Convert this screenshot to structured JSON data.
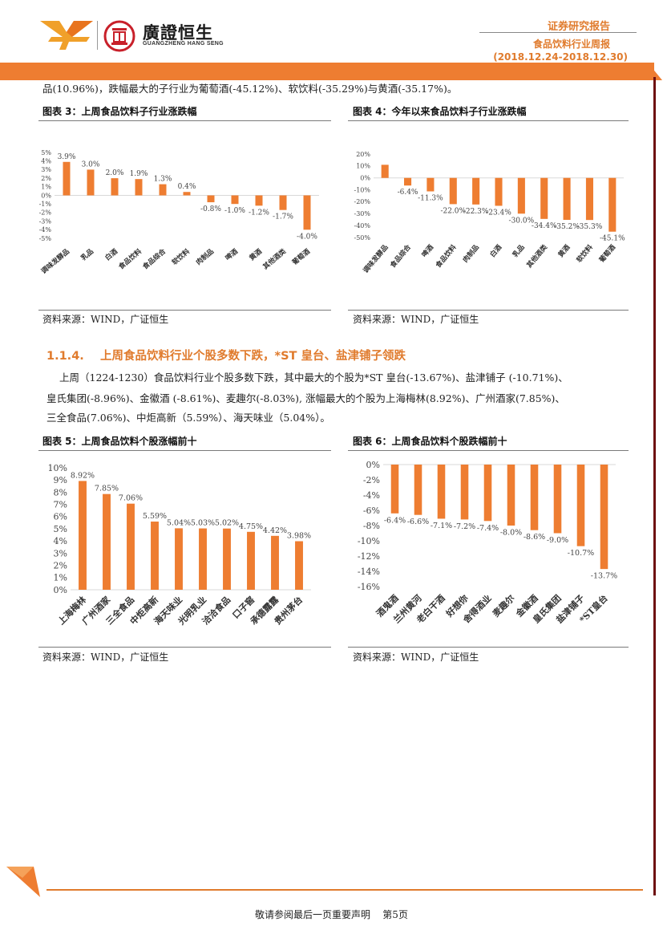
{
  "header": {
    "logo_cn": "廣證恒生",
    "logo_en": "GUANGZHENG HANG SENG",
    "report_type": "证券研究报告",
    "report_name": "食品饮料行业周报",
    "date_range": "(2018.12.24-2018.12.30)"
  },
  "intro_line": "品(10.96%)，跌幅最大的子行业为葡萄酒(-45.12%)、软饮料(-35.29%)与黄酒(-35.17%)。",
  "figure3": {
    "title": "图表 3：上周食品饮料子行业涨跌幅",
    "source": "资料来源：WIND，广证恒生"
  },
  "figure4": {
    "title": "图表 4：今年以来食品饮料子行业涨跌幅",
    "source": "资料来源：WIND，广证恒生"
  },
  "section": {
    "title": "1.1.4.    上周食品饮料行业个股多数下跌，*ST 皇台、盐津铺子领跌",
    "lines": [
      "上周（1224-1230）食品饮料行业个股多数下跌，其中最大的个股为*ST 皇台(-13.67%)、盐津铺子 (-10.71%)、",
      "皇氏集团(-8.96%)、金徽酒 (-8.61%)、麦趣尔(-8.03%), 涨幅最大的个股为上海梅林(8.92%)、广州酒家(7.85%)、",
      "三全食品(7.06%)、中炬高新（5.59%）、海天味业（5.04%）。"
    ]
  },
  "figure5": {
    "title": "图表 5：上周食品饮料个股涨幅前十",
    "source": "资料来源：WIND，广证恒生"
  },
  "figure6": {
    "title": "图表 6：上周食品饮料个股跌幅前十",
    "source": "资料来源：WIND，广证恒生"
  },
  "footer": {
    "text": "敬请参阅最后一页重要声明    第5页"
  },
  "colors": {
    "bar": "#EE7D31",
    "accent": "#E07B2D"
  },
  "chart_data": [
    {
      "type": "bar",
      "title": "图表 3：上周食品饮料子行业涨跌幅",
      "categories": [
        "调味发酵品",
        "乳品",
        "白酒",
        "食品饮料",
        "食品综合",
        "软饮料",
        "肉制品",
        "啤酒",
        "黄酒",
        "其他酒类",
        "葡萄酒"
      ],
      "values": [
        3.9,
        3.0,
        2.0,
        1.9,
        1.3,
        0.4,
        -0.8,
        -1.0,
        -1.2,
        -1.7,
        -4.0
      ],
      "data_labels": [
        "3.9%",
        "3.0%",
        "2.0%",
        "1.9%",
        "1.3%",
        "0.4%",
        "-0.8%",
        "-1.0%",
        "-1.2%",
        "-1.7%",
        "-4.0%"
      ],
      "yticks": [
        "5%",
        "4%",
        "3%",
        "2%",
        "1%",
        "0%",
        "-1%",
        "-2%",
        "-3%",
        "-4%",
        "-5%"
      ],
      "ylim": [
        -5,
        5
      ]
    },
    {
      "type": "bar",
      "title": "图表 4：今年以来食品饮料子行业涨跌幅",
      "categories": [
        "调味发酵品",
        "食品综合",
        "啤酒",
        "食品饮料",
        "肉制品",
        "白酒",
        "乳品",
        "其他酒类",
        "黄酒",
        "软饮料",
        "葡萄酒"
      ],
      "values": [
        11.0,
        -6.4,
        -11.3,
        -22.0,
        -22.3,
        -23.4,
        -30.0,
        -34.4,
        -35.2,
        -35.3,
        -45.1
      ],
      "data_labels": [
        "11.0%",
        "-6.4%",
        "-11.3%",
        "-22.0%",
        "-22.3%",
        "-23.4%",
        "-30.0%",
        "-34.4%",
        "-35.2%",
        "-35.3%",
        "-45.1%"
      ],
      "yticks": [
        "20%",
        "10%",
        "0%",
        "-10%",
        "-20%",
        "-30%",
        "-40%",
        "-50%"
      ],
      "ylim": [
        -50,
        20
      ]
    },
    {
      "type": "bar",
      "title": "图表 5：上周食品饮料个股涨幅前十",
      "categories": [
        "上海梅林",
        "广州酒家",
        "三全食品",
        "中炬高新",
        "海天味业",
        "光明乳业",
        "洽洽食品",
        "口子窖",
        "承德露露",
        "贵州茅台"
      ],
      "values": [
        8.92,
        7.85,
        7.06,
        5.59,
        5.04,
        5.03,
        5.02,
        4.75,
        4.42,
        3.98
      ],
      "data_labels": [
        "8.92%",
        "7.85%",
        "7.06%",
        "5.59%",
        "5.04%",
        "5.03%",
        "5.02%",
        "4.75%",
        "4.42%",
        "3.98%"
      ],
      "yticks": [
        "10%",
        "9%",
        "8%",
        "7%",
        "6%",
        "5%",
        "4%",
        "3%",
        "2%",
        "1%",
        "0%"
      ],
      "ylim": [
        0,
        10
      ]
    },
    {
      "type": "bar",
      "title": "图表 6：上周食品饮料个股跌幅前十",
      "categories": [
        "酒鬼酒",
        "兰州黄河",
        "老白干酒",
        "好想你",
        "舍得酒业",
        "麦趣尔",
        "金徽酒",
        "皇氏集团",
        "盐津铺子",
        "*ST皇台"
      ],
      "values": [
        -6.4,
        -6.6,
        -7.1,
        -7.2,
        -7.4,
        -8.0,
        -8.6,
        -9.0,
        -10.7,
        -13.7
      ],
      "data_labels": [
        "-6.4%",
        "-6.6%",
        "-7.1%",
        "-7.2%",
        "-7.4%",
        "-8.0%",
        "-8.6%",
        "-9.0%",
        "-10.7%",
        "-13.7%"
      ],
      "yticks": [
        "0%",
        "-2%",
        "-4%",
        "-6%",
        "-8%",
        "-10%",
        "-12%",
        "-14%",
        "-16%"
      ],
      "ylim": [
        -16,
        0
      ]
    }
  ]
}
